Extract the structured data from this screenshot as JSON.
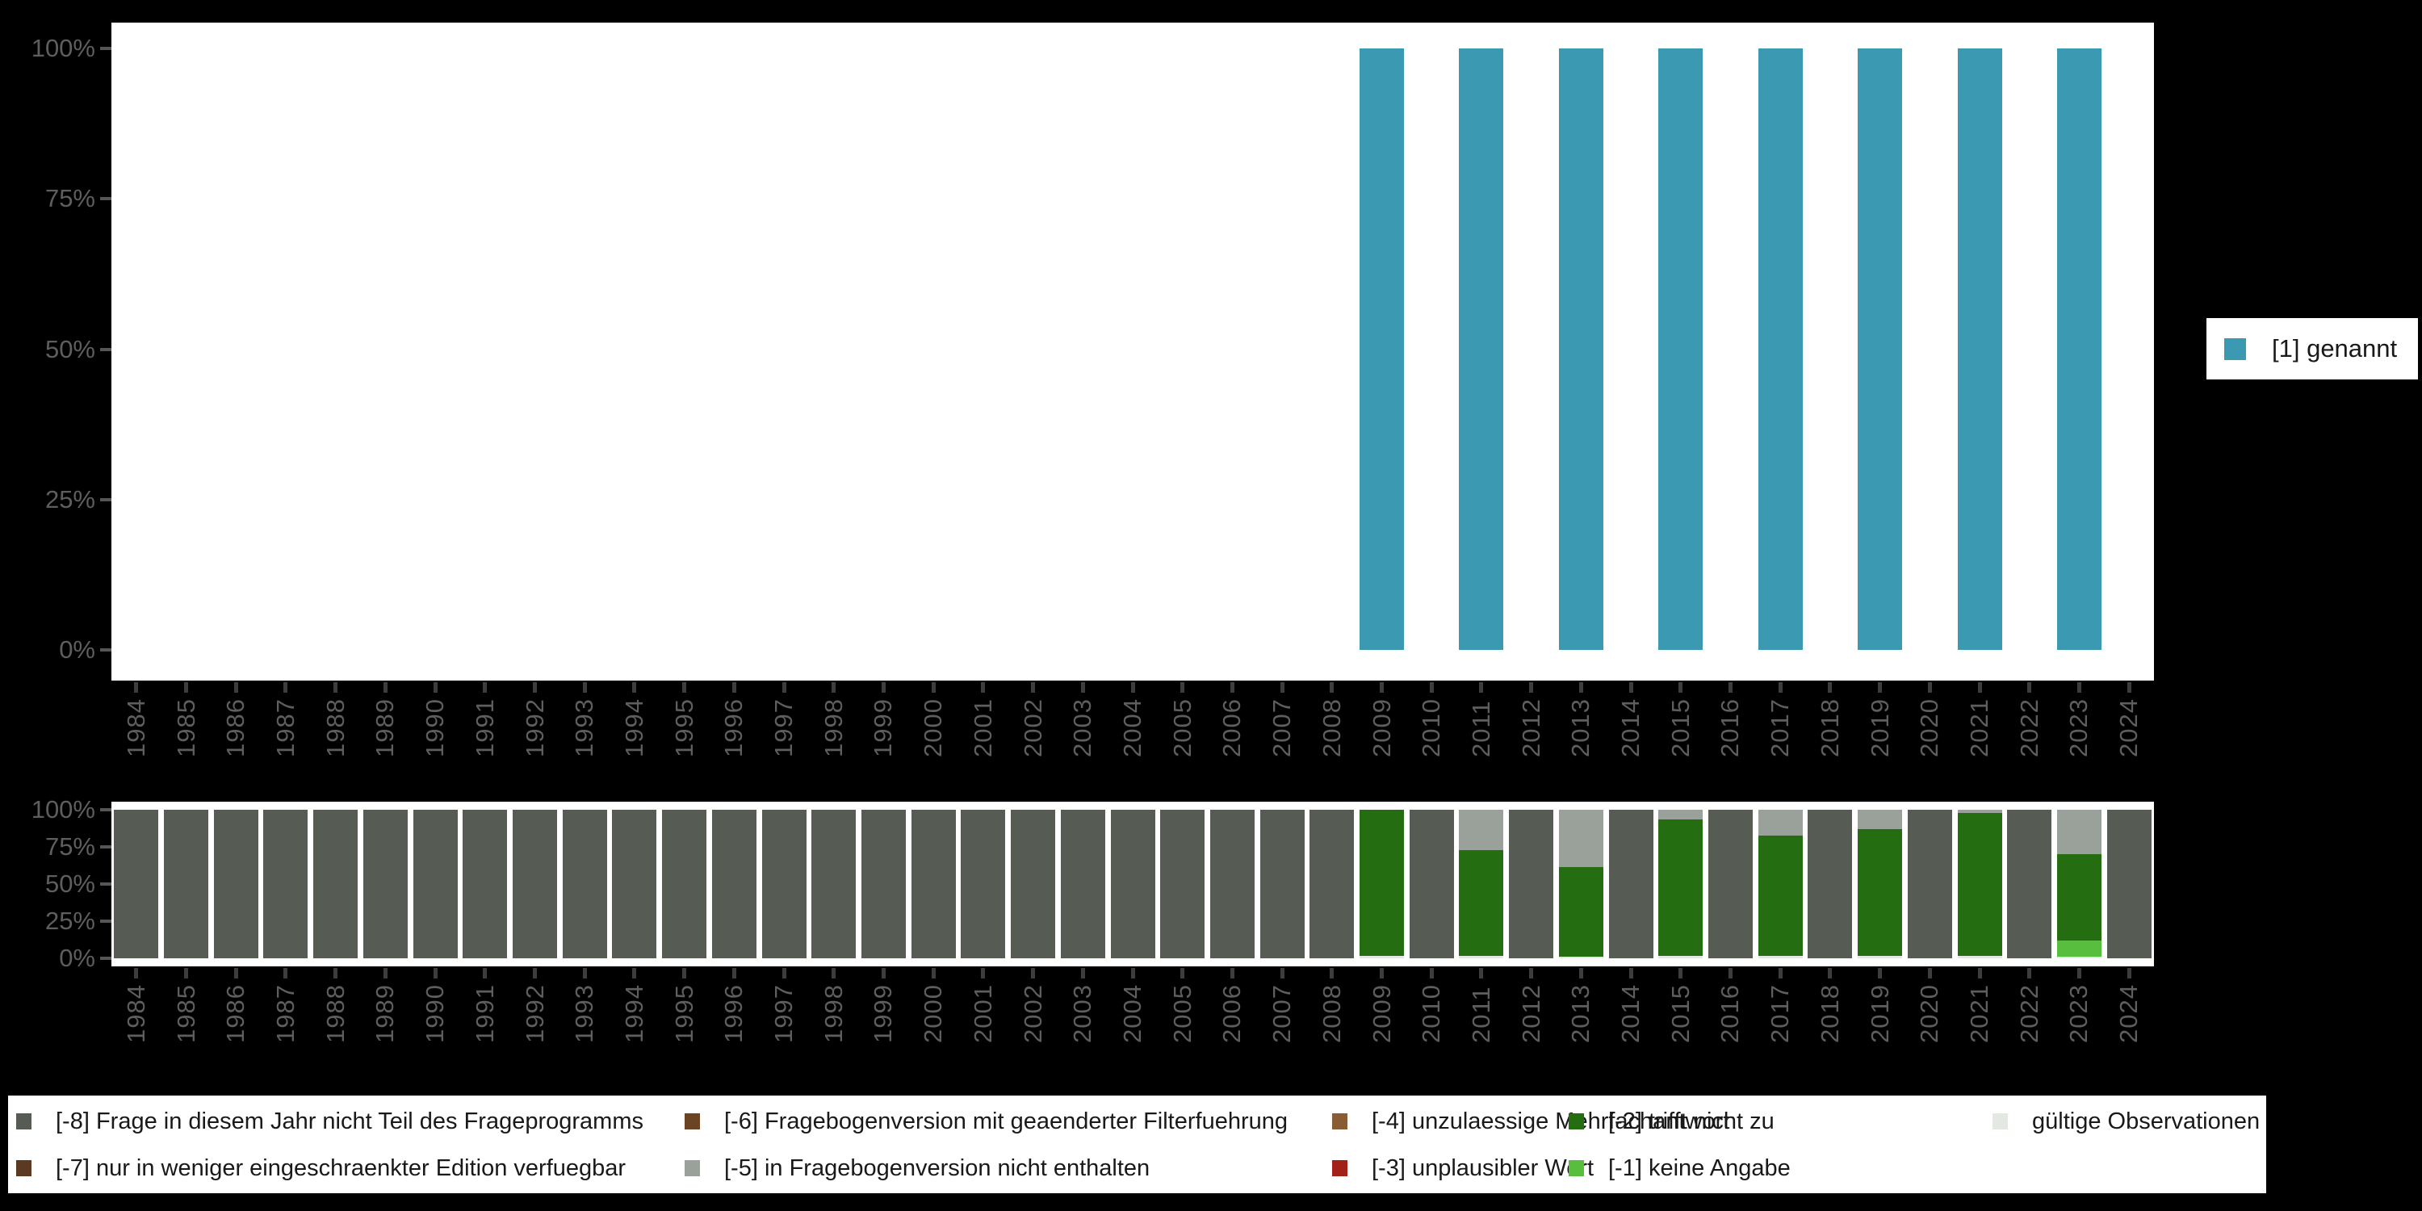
{
  "colors": {
    "background": "#000000",
    "panel": "#ffffff",
    "axis_text": "#5e5e5e",
    "x_tick": "#3d3d3d",
    "y_tick": "#565656",
    "legend_text": "#191919"
  },
  "years": [
    "1984",
    "1985",
    "1986",
    "1987",
    "1988",
    "1989",
    "1990",
    "1991",
    "1992",
    "1993",
    "1994",
    "1995",
    "1996",
    "1997",
    "1998",
    "1999",
    "2000",
    "2001",
    "2002",
    "2003",
    "2004",
    "2005",
    "2006",
    "2007",
    "2008",
    "2009",
    "2010",
    "2011",
    "2012",
    "2013",
    "2014",
    "2015",
    "2016",
    "2017",
    "2018",
    "2019",
    "2020",
    "2021",
    "2022",
    "2023",
    "2024"
  ],
  "yticks": [
    "100%",
    "75%",
    "50%",
    "25%",
    "0%"
  ],
  "top_legend": {
    "label": "[1] genannt",
    "color": "#3B9AB2"
  },
  "chart_data": [
    {
      "type": "bar",
      "title": "",
      "xlabel": "",
      "ylabel": "",
      "ylim": [
        0,
        100
      ],
      "ytick_labels": [
        "0%",
        "25%",
        "50%",
        "75%",
        "100%"
      ],
      "categories": [
        "1984",
        "1985",
        "1986",
        "1987",
        "1988",
        "1989",
        "1990",
        "1991",
        "1992",
        "1993",
        "1994",
        "1995",
        "1996",
        "1997",
        "1998",
        "1999",
        "2000",
        "2001",
        "2002",
        "2003",
        "2004",
        "2005",
        "2006",
        "2007",
        "2008",
        "2009",
        "2010",
        "2011",
        "2012",
        "2013",
        "2014",
        "2015",
        "2016",
        "2017",
        "2018",
        "2019",
        "2020",
        "2021",
        "2022",
        "2023",
        "2024"
      ],
      "series": [
        {
          "name": "[1] genannt",
          "color": "#3B9AB2",
          "values": [
            0,
            0,
            0,
            0,
            0,
            0,
            0,
            0,
            0,
            0,
            0,
            0,
            0,
            0,
            0,
            0,
            0,
            0,
            0,
            0,
            0,
            0,
            0,
            0,
            0,
            100,
            0,
            100,
            0,
            100,
            0,
            100,
            0,
            100,
            0,
            100,
            0,
            100,
            0,
            100,
            0
          ]
        }
      ],
      "legend_position": "right"
    },
    {
      "type": "stacked-bar",
      "title": "",
      "xlabel": "",
      "ylabel": "",
      "ylim": [
        0,
        100
      ],
      "ytick_labels": [
        "0%",
        "25%",
        "50%",
        "75%",
        "100%"
      ],
      "categories": [
        "1984",
        "1985",
        "1986",
        "1987",
        "1988",
        "1989",
        "1990",
        "1991",
        "1992",
        "1993",
        "1994",
        "1995",
        "1996",
        "1997",
        "1998",
        "1999",
        "2000",
        "2001",
        "2002",
        "2003",
        "2004",
        "2005",
        "2006",
        "2007",
        "2008",
        "2009",
        "2010",
        "2011",
        "2012",
        "2013",
        "2014",
        "2015",
        "2016",
        "2017",
        "2018",
        "2019",
        "2020",
        "2021",
        "2022",
        "2023",
        "2024"
      ],
      "series": [
        {
          "name": "gültige Observationen",
          "color": "#E4E8E2",
          "values": [
            0,
            0,
            0,
            0,
            0,
            0,
            0,
            0,
            0,
            0,
            0,
            0,
            0,
            0,
            0,
            0,
            0,
            0,
            0,
            0,
            0,
            0,
            0,
            0,
            0,
            1.5,
            0,
            1.5,
            0,
            1,
            0,
            1.5,
            0,
            1.5,
            0,
            1.5,
            0,
            1.5,
            0,
            1,
            0
          ]
        },
        {
          "name": "[-1] keine Angabe",
          "color": "#57BF3D",
          "values": [
            0,
            0,
            0,
            0,
            0,
            0,
            0,
            0,
            0,
            0,
            0,
            0,
            0,
            0,
            0,
            0,
            0,
            0,
            0,
            0,
            0,
            0,
            0,
            0,
            0,
            0,
            0,
            0,
            0,
            0,
            0,
            0,
            0,
            0,
            0,
            0,
            0,
            0,
            0,
            11,
            0
          ]
        },
        {
          "name": "[-2] trifft nicht zu",
          "color": "#246D11",
          "values": [
            0,
            0,
            0,
            0,
            0,
            0,
            0,
            0,
            0,
            0,
            0,
            0,
            0,
            0,
            0,
            0,
            0,
            0,
            0,
            0,
            0,
            0,
            0,
            0,
            0,
            98.5,
            0,
            71.5,
            0,
            60.5,
            0,
            92,
            0,
            81,
            0,
            85.5,
            0,
            96.5,
            0,
            58,
            0
          ]
        },
        {
          "name": "[-5] in Fragebogenversion nicht enthalten",
          "color": "#9AA09A",
          "values": [
            0,
            0,
            0,
            0,
            0,
            0,
            0,
            0,
            0,
            0,
            0,
            0,
            0,
            0,
            0,
            0,
            0,
            0,
            0,
            0,
            0,
            0,
            0,
            0,
            0,
            0,
            0,
            27,
            0,
            38.5,
            0,
            6.5,
            0,
            17.5,
            0,
            13,
            0,
            2,
            0,
            30,
            0
          ]
        },
        {
          "name": "[-8] Frage in diesem Jahr nicht Teil des Frageprogramms",
          "color": "#565C54",
          "values": [
            100,
            100,
            100,
            100,
            100,
            100,
            100,
            100,
            100,
            100,
            100,
            100,
            100,
            100,
            100,
            100,
            100,
            100,
            100,
            100,
            100,
            100,
            100,
            100,
            100,
            0,
            100,
            0,
            100,
            0,
            100,
            0,
            100,
            0,
            100,
            0,
            100,
            0,
            100,
            0,
            100
          ]
        }
      ],
      "legend_position": "bottom"
    }
  ],
  "bottom_legend": {
    "rows": [
      [
        {
          "label": "[-8] Frage in diesem Jahr nicht Teil des Frageprogramms",
          "color": "#565C54"
        },
        {
          "label": "[-6] Fragebogenversion mit geaenderter Filterfuehrung",
          "color": "#6B4423"
        },
        {
          "label": "[-4] unzulaessige Mehrfachantwort",
          "color": "#8A5C33"
        },
        {
          "label": "[-2] trifft nicht zu",
          "color": "#246D11"
        },
        {
          "label": "gültige Observationen",
          "color": "#E4E8E2"
        }
      ],
      [
        {
          "label": "[-7] nur in weniger eingeschraenkter Edition verfuegbar",
          "color": "#5B3A21"
        },
        {
          "label": "[-5] in Fragebogenversion nicht enthalten",
          "color": "#9AA09A"
        },
        {
          "label": "[-3] unplausibler Wert",
          "color": "#A32019"
        },
        {
          "label": "[-1] keine Angabe",
          "color": "#57BF3D"
        }
      ]
    ]
  }
}
